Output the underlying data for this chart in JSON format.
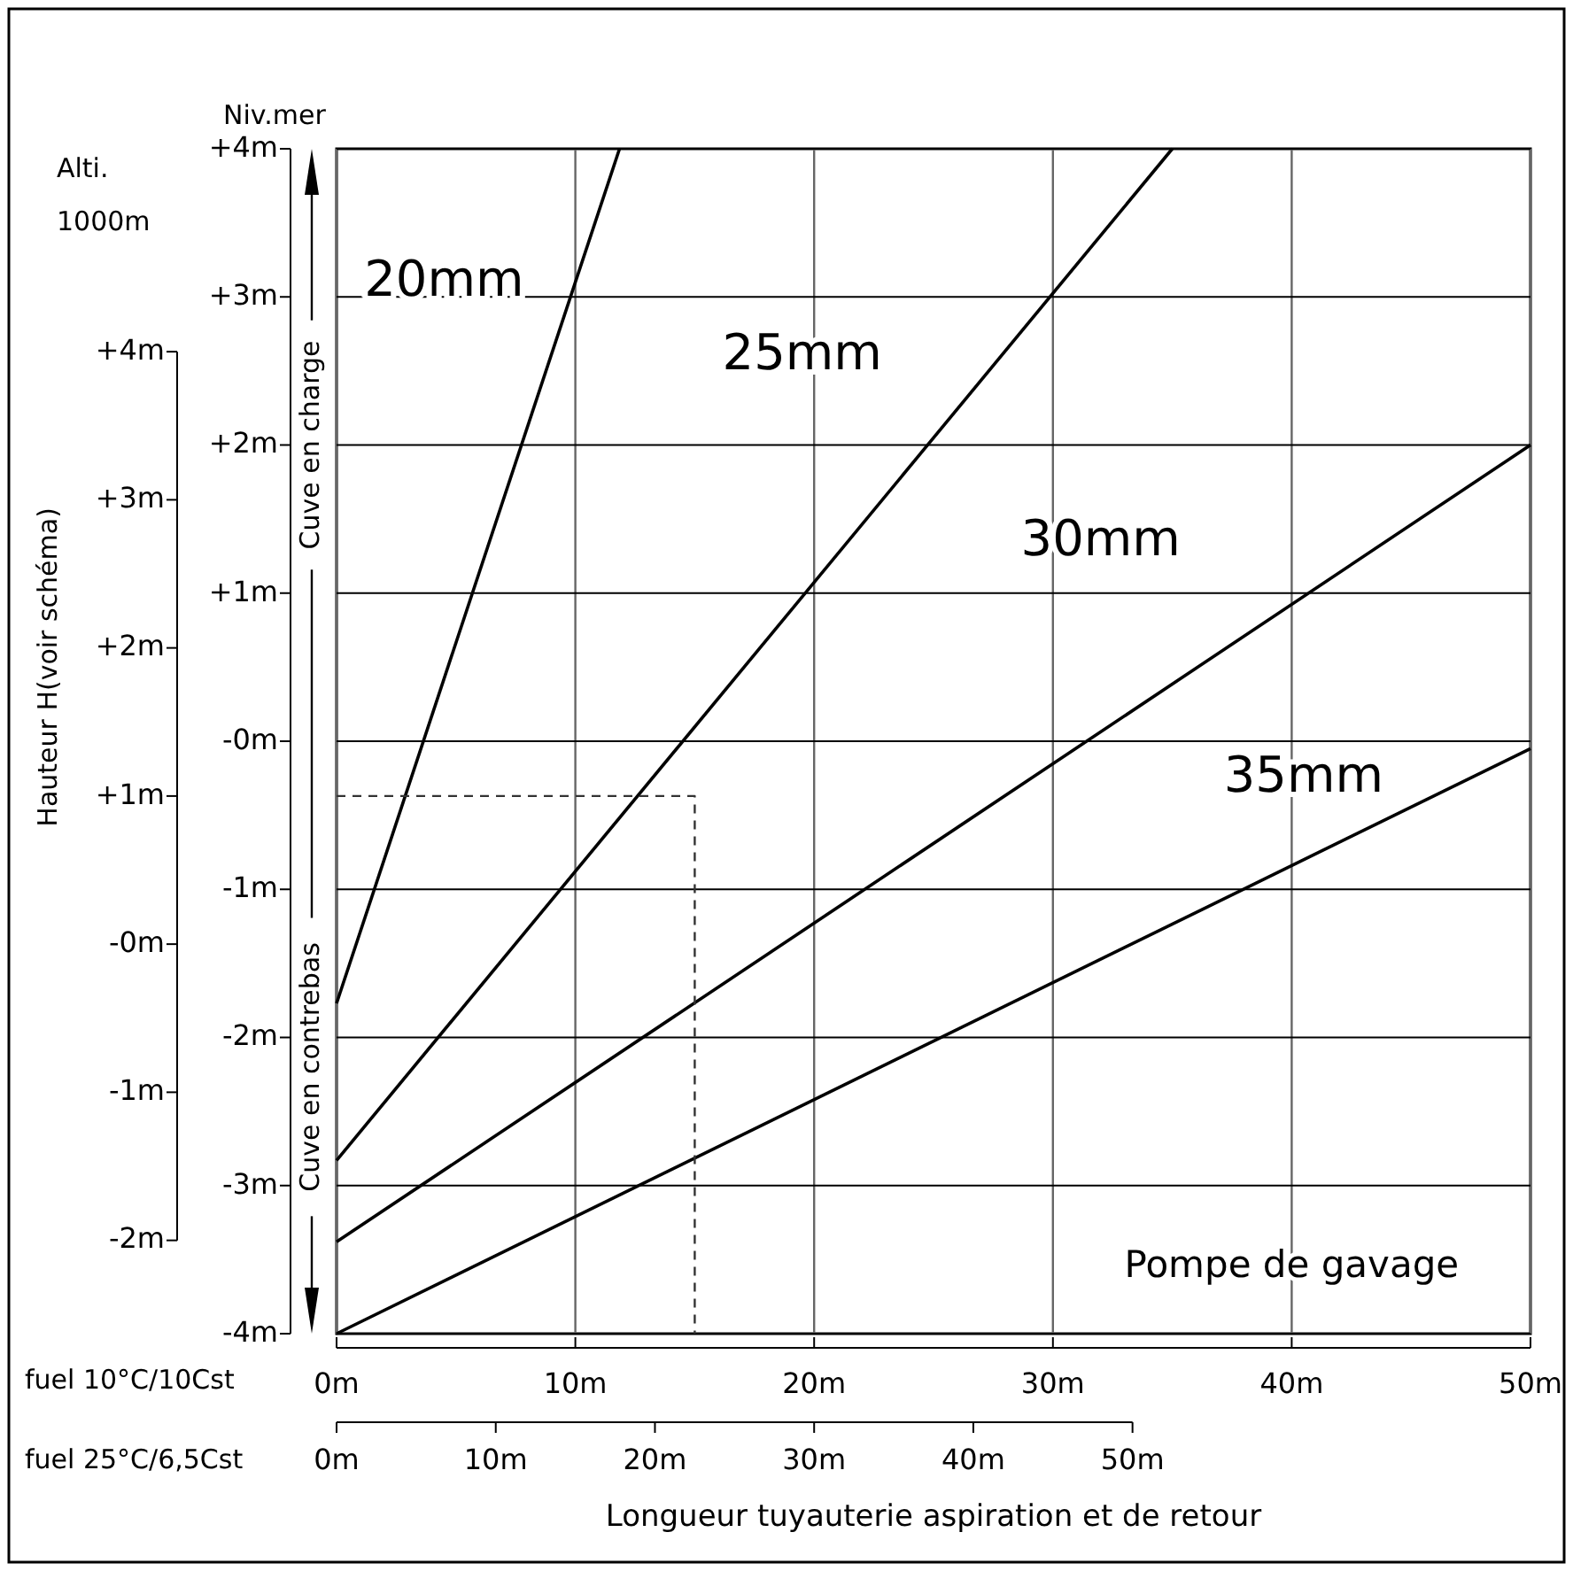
{
  "chart_data": {
    "type": "line",
    "ylabel": "Niv.mer",
    "y2label": "Alti. 1000m",
    "xlabel": "fuel 10°C/10Cst",
    "x2label": "fuel 25°C/6,5Cst",
    "xlim": [
      0,
      50
    ],
    "xticks": [
      {
        "value": 0,
        "label": "0m"
      },
      {
        "value": 10,
        "label": "10m"
      },
      {
        "value": 20,
        "label": "20m"
      },
      {
        "value": 30,
        "label": "30m"
      },
      {
        "value": 40,
        "label": "40m"
      },
      {
        "value": 50,
        "label": "50m"
      }
    ],
    "x2lim": [
      0,
      75
    ],
    "x2ticks": [
      {
        "value": 0,
        "label": "0m"
      },
      {
        "value": 10,
        "label": "10m"
      },
      {
        "value": 20,
        "label": "20m"
      },
      {
        "value": 30,
        "label": "30m"
      },
      {
        "value": 40,
        "label": "40m"
      },
      {
        "value": 50,
        "label": "50m"
      }
    ],
    "ylim": [
      -4,
      4
    ],
    "yticks": [
      {
        "value": 4,
        "label": "+4m"
      },
      {
        "value": 3,
        "label": "+3m"
      },
      {
        "value": 2,
        "label": "+2m"
      },
      {
        "value": 1,
        "label": "+1m"
      },
      {
        "value": 0,
        "label": "-0m"
      },
      {
        "value": -1,
        "label": "-1m"
      },
      {
        "value": -2,
        "label": "-2m"
      },
      {
        "value": -3,
        "label": "-3m"
      },
      {
        "value": -4,
        "label": "-4m"
      }
    ],
    "y2lim": [
      -2.63,
      5.37
    ],
    "y2ticks": [
      {
        "value": 4,
        "label": "+4m"
      },
      {
        "value": 3,
        "label": "+3m"
      },
      {
        "value": 2,
        "label": "+2m"
      },
      {
        "value": 1,
        "label": "+1m"
      },
      {
        "value": 0,
        "label": "-0m"
      },
      {
        "value": -1,
        "label": "-1m"
      },
      {
        "value": -2,
        "label": "-2m"
      }
    ],
    "grid": true,
    "marker": "none",
    "series": [
      {
        "name": "20mm",
        "color": "#000000",
        "x": [
          0,
          11.85
        ],
        "values": [
          -1.77,
          4
        ]
      },
      {
        "name": "25mm",
        "color": "#000000",
        "x": [
          0,
          35
        ],
        "values": [
          -2.83,
          4
        ]
      },
      {
        "name": "30mm",
        "color": "#000000",
        "x": [
          0,
          50
        ],
        "values": [
          -3.38,
          2
        ]
      },
      {
        "name": "35mm",
        "color": "#000000",
        "x": [
          0,
          50
        ],
        "values": [
          -4,
          -0.05
        ]
      },
      {
        "color": "#333333",
        "line_style": "dashed",
        "x": [
          0,
          15,
          15
        ],
        "values": [
          -0.37,
          -0.37,
          -4
        ]
      }
    ],
    "annotations": [
      "Cuve en charge",
      "Cuve en contrebas",
      "Pompe de gavage",
      "Hauteur H(voir schéma)",
      "Longueur tuyauterie aspiration et de retour"
    ]
  }
}
